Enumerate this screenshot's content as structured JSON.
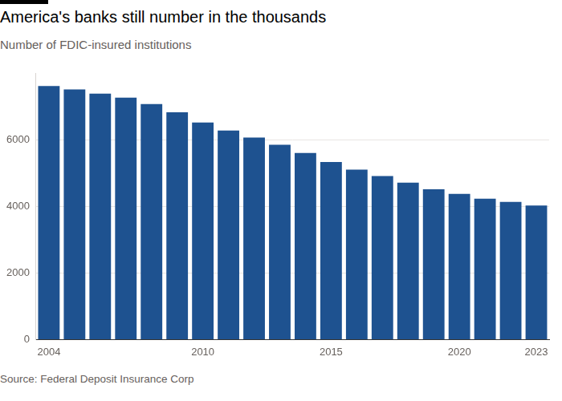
{
  "chart_data": {
    "type": "bar",
    "title": "America's banks still number in the thousands",
    "subtitle": "Number of FDIC-insured institutions",
    "source": "Source: Federal Deposit Insurance Corp",
    "categories": [
      "2004",
      null,
      null,
      null,
      null,
      null,
      "2010",
      null,
      null,
      null,
      null,
      "2015",
      null,
      null,
      null,
      null,
      "2020",
      null,
      null,
      "2023"
    ],
    "values": [
      7630,
      7525,
      7400,
      7280,
      7085,
      6840,
      6530,
      6290,
      6080,
      5860,
      5610,
      5340,
      5110,
      4920,
      4720,
      4520,
      4380,
      4240,
      4140,
      4030
    ],
    "color": "#1e5290",
    "ylim": [
      0,
      8000
    ],
    "yticks": [
      0,
      2000,
      4000,
      6000
    ],
    "grid": true
  }
}
